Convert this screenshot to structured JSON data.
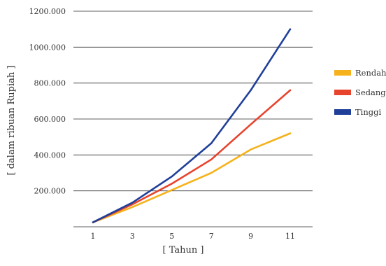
{
  "chart_data": {
    "type": "line",
    "x": [
      1,
      3,
      5,
      7,
      9,
      11
    ],
    "x_tick_labels": [
      "1",
      "3",
      "5",
      "7",
      "9",
      "11"
    ],
    "xlabel": "[ Tahun ]",
    "ylabel": "[ dalam ribuan Rupiah ]",
    "ylim": [
      0,
      1200000
    ],
    "y_ticks": [
      200000,
      400000,
      600000,
      800000,
      1000000,
      1200000
    ],
    "y_tick_labels": [
      "200.000",
      "400.000",
      "600.000",
      "800.000",
      "1000.000",
      "1200.000"
    ],
    "grid": "horizontal",
    "legend_position": "right",
    "series": [
      {
        "name": "Rendah",
        "color": "#f5b21c",
        "values": [
          25000,
          110000,
          205000,
          300000,
          430000,
          520000
        ]
      },
      {
        "name": "Sedang",
        "color": "#e8432c",
        "values": [
          25000,
          125000,
          240000,
          375000,
          570000,
          760000
        ]
      },
      {
        "name": "Tinggi",
        "color": "#1f3f99",
        "values": [
          25000,
          135000,
          280000,
          465000,
          760000,
          1100000
        ]
      }
    ]
  }
}
